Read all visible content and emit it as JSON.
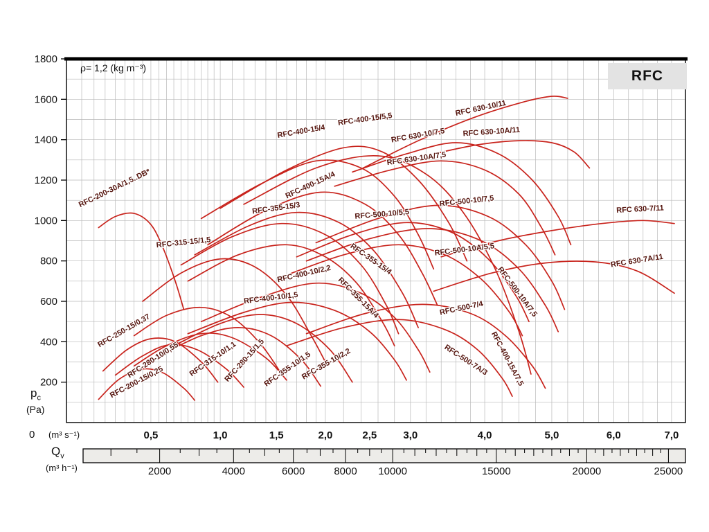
{
  "annotations": {
    "density": "ρ= 1,2 (kg m⁻³)",
    "brand": "RFC"
  },
  "axis_labels": {
    "pressure_main": "p",
    "pressure_sub": "c",
    "pressure_unit": "(Pa)",
    "pressure_zero": "0",
    "flow_s_unit": "(m³ s⁻¹)",
    "flow_h_main": "Q",
    "flow_h_sub": "v",
    "flow_h_unit": "(m³ h⁻¹)"
  },
  "colors": {
    "curve": "#c8231c",
    "curve_label": "#55150e",
    "grid": "#b9b9b9",
    "frame": "#000000",
    "ruler_fill": "#edece9",
    "brand_bg": "#e3e3e3"
  },
  "y_axis": {
    "unit": "Pa",
    "min": 0,
    "max": 1800,
    "ticks": [
      200,
      400,
      600,
      800,
      1000,
      1200,
      1400,
      1600,
      1800
    ]
  },
  "x_axis_s": {
    "unit": "m³/s",
    "ticks": [
      {
        "v": 0.5,
        "label": "0,5"
      },
      {
        "v": 1.0,
        "label": "1,0"
      },
      {
        "v": 1.5,
        "label": "1,5"
      },
      {
        "v": 2.0,
        "label": "2,0"
      },
      {
        "v": 2.5,
        "label": "2,5"
      },
      {
        "v": 3.0,
        "label": "3,0"
      },
      {
        "v": 4.0,
        "label": "4,0"
      },
      {
        "v": 5.0,
        "label": "5,0"
      },
      {
        "v": 6.0,
        "label": "6,0"
      },
      {
        "v": 7.0,
        "label": "7,0"
      }
    ]
  },
  "x_axis_h": {
    "unit": "m³/h",
    "ticks": [
      2000,
      4000,
      6000,
      8000,
      10000,
      15000,
      20000,
      25000
    ]
  },
  "chart_data": {
    "type": "line",
    "title": "RFC",
    "subtitle": "Fan performance curves, ρ= 1,2 kg/m³",
    "xlabel": "Qv (m³ s⁻¹ / m³ h⁻¹)",
    "ylabel": "pc (Pa)",
    "xlim": [
      0.1,
      7.25
    ],
    "ylim": [
      0,
      1800
    ],
    "grid": true,
    "series": [
      {
        "name": "RFC-200-15/0,25",
        "points": [
          [
            0.22,
            115
          ],
          [
            0.32,
            215
          ],
          [
            0.45,
            265
          ],
          [
            0.58,
            245
          ],
          [
            0.72,
            170
          ],
          [
            0.8,
            110
          ]
        ],
        "label": {
          "v": 0.42,
          "p": 190,
          "angle": -28
        }
      },
      {
        "name": "RFC-250-15/0,37",
        "points": [
          [
            0.24,
            255
          ],
          [
            0.36,
            360
          ],
          [
            0.5,
            415
          ],
          [
            0.66,
            400
          ],
          [
            0.85,
            300
          ],
          [
            0.98,
            200
          ]
        ],
        "label": {
          "v": 0.35,
          "p": 445,
          "angle": -30
        }
      },
      {
        "name": "RFC-280-10/0,55",
        "points": [
          [
            0.3,
            235
          ],
          [
            0.45,
            330
          ],
          [
            0.62,
            385
          ],
          [
            0.82,
            360
          ],
          [
            1.05,
            265
          ],
          [
            1.2,
            175
          ]
        ],
        "label": {
          "v": 0.52,
          "p": 300,
          "angle": -33
        }
      },
      {
        "name": "RFC-315-10/1,1",
        "points": [
          [
            0.4,
            280
          ],
          [
            0.6,
            380
          ],
          [
            0.85,
            440
          ],
          [
            1.1,
            420
          ],
          [
            1.4,
            320
          ],
          [
            1.6,
            210
          ]
        ],
        "label": {
          "v": 0.95,
          "p": 305,
          "angle": -35
        }
      },
      {
        "name": "RFC-280-15/1,5",
        "points": [
          [
            0.4,
            430
          ],
          [
            0.6,
            530
          ],
          [
            0.85,
            570
          ],
          [
            1.1,
            520
          ],
          [
            1.35,
            390
          ],
          [
            1.55,
            240
          ]
        ],
        "label": {
          "v": 1.22,
          "p": 300,
          "angle": -48
        }
      },
      {
        "name": "RFC-355-10/1,5",
        "points": [
          [
            0.55,
            330
          ],
          [
            0.85,
            430
          ],
          [
            1.15,
            470
          ],
          [
            1.45,
            430
          ],
          [
            1.75,
            310
          ],
          [
            1.95,
            180
          ]
        ],
        "label": {
          "v": 1.62,
          "p": 255,
          "angle": -35
        }
      },
      {
        "name": "RFC-355-10/2,2",
        "points": [
          [
            0.65,
            380
          ],
          [
            1.0,
            490
          ],
          [
            1.35,
            535
          ],
          [
            1.7,
            490
          ],
          [
            2.05,
            360
          ],
          [
            2.3,
            200
          ]
        ],
        "label": {
          "v": 2.02,
          "p": 280,
          "angle": -30
        }
      },
      {
        "name": "RFC-200-30A/1,5..DB*",
        "points": [
          [
            0.22,
            965
          ],
          [
            0.3,
            1020
          ],
          [
            0.4,
            1035
          ],
          [
            0.5,
            980
          ],
          [
            0.58,
            860
          ],
          [
            0.66,
            700
          ],
          [
            0.72,
            560
          ]
        ],
        "label": {
          "v": 0.3,
          "p": 1150,
          "angle": -26
        }
      },
      {
        "name": "RFC-315-15/1,5",
        "points": [
          [
            0.45,
            600
          ],
          [
            0.7,
            740
          ],
          [
            1.0,
            810
          ],
          [
            1.3,
            770
          ],
          [
            1.6,
            630
          ],
          [
            1.85,
            430
          ],
          [
            2.0,
            300
          ]
        ],
        "label": {
          "v": 0.72,
          "p": 880,
          "angle": -6
        }
      },
      {
        "name": "RFC-355-15/3",
        "points": [
          [
            0.7,
            780
          ],
          [
            1.1,
            920
          ],
          [
            1.55,
            985
          ],
          [
            2.0,
            930
          ],
          [
            2.4,
            780
          ],
          [
            2.7,
            580
          ],
          [
            2.85,
            440
          ]
        ],
        "label": {
          "v": 1.5,
          "p": 1050,
          "angle": -8
        }
      },
      {
        "name": "RFC-355-15/4",
        "points": [
          [
            0.8,
            830
          ],
          [
            1.25,
            975
          ],
          [
            1.7,
            1040
          ],
          [
            2.15,
            990
          ],
          [
            2.55,
            850
          ],
          [
            2.9,
            640
          ],
          [
            3.1,
            470
          ]
        ],
        "label": {
          "v": 2.5,
          "p": 800,
          "angle": 35
        }
      },
      {
        "name": "RFC-355-15A/4",
        "points": [
          [
            0.75,
            700
          ],
          [
            1.15,
            830
          ],
          [
            1.6,
            880
          ],
          [
            2.0,
            820
          ],
          [
            2.35,
            690
          ],
          [
            2.65,
            500
          ],
          [
            2.8,
            380
          ]
        ],
        "label": {
          "v": 2.35,
          "p": 610,
          "angle": 45
        }
      },
      {
        "name": "RFC-400-15/4",
        "points": [
          [
            0.85,
            1010
          ],
          [
            1.35,
            1180
          ],
          [
            1.9,
            1295
          ],
          [
            2.4,
            1260
          ],
          [
            2.8,
            1120
          ],
          [
            3.1,
            930
          ],
          [
            3.3,
            760
          ]
        ],
        "label": {
          "v": 1.75,
          "p": 1430,
          "angle": -10
        }
      },
      {
        "name": "RFC-400-15/5,5",
        "points": [
          [
            1.0,
            1060
          ],
          [
            1.6,
            1250
          ],
          [
            2.2,
            1360
          ],
          [
            2.65,
            1340
          ],
          [
            3.1,
            1200
          ],
          [
            3.5,
            990
          ],
          [
            3.75,
            800
          ]
        ],
        "label": {
          "v": 2.45,
          "p": 1490,
          "angle": -8
        }
      },
      {
        "name": "RFC-400-15A/4",
        "points": [
          [
            0.9,
            880
          ],
          [
            1.4,
            1050
          ],
          [
            1.95,
            1140
          ],
          [
            2.45,
            1080
          ],
          [
            2.85,
            930
          ],
          [
            3.15,
            740
          ],
          [
            3.35,
            580
          ]
        ],
        "label": {
          "v": 1.85,
          "p": 1165,
          "angle": -25
        }
      },
      {
        "name": "RFC-400-10/2,2",
        "points": [
          [
            0.85,
            500
          ],
          [
            1.35,
            620
          ],
          [
            1.9,
            690
          ],
          [
            2.4,
            640
          ],
          [
            2.8,
            520
          ],
          [
            3.1,
            360
          ],
          [
            3.25,
            250
          ]
        ],
        "label": {
          "v": 1.78,
          "p": 725,
          "angle": -13
        }
      },
      {
        "name": "RFC-400-10/1,5",
        "points": [
          [
            0.75,
            440
          ],
          [
            1.2,
            545
          ],
          [
            1.65,
            595
          ],
          [
            2.1,
            555
          ],
          [
            2.5,
            450
          ],
          [
            2.8,
            310
          ],
          [
            2.95,
            210
          ]
        ],
        "label": {
          "v": 1.45,
          "p": 605,
          "angle": -7
        }
      },
      {
        "name": "RFC-400-15A/7,5",
        "points": [
          [
            1.2,
            1080
          ],
          [
            1.9,
            1260
          ],
          [
            2.6,
            1320
          ],
          [
            3.2,
            1230
          ],
          [
            3.7,
            1040
          ],
          [
            4.15,
            760
          ],
          [
            4.5,
            450
          ],
          [
            4.68,
            240
          ]
        ],
        "label": {
          "v": 4.3,
          "p": 310,
          "angle": 62
        }
      },
      {
        "name": "RFC-500-10/5,5",
        "points": [
          [
            1.7,
            820
          ],
          [
            2.3,
            930
          ],
          [
            2.95,
            990
          ],
          [
            3.55,
            940
          ],
          [
            4.05,
            810
          ],
          [
            4.45,
            630
          ],
          [
            4.65,
            500
          ]
        ],
        "label": {
          "v": 2.65,
          "p": 1020,
          "angle": -5
        }
      },
      {
        "name": "RFC-500-10/7,5",
        "points": [
          [
            1.9,
            890
          ],
          [
            2.6,
            1010
          ],
          [
            3.35,
            1075
          ],
          [
            4.05,
            1020
          ],
          [
            4.6,
            880
          ],
          [
            5.0,
            700
          ],
          [
            5.2,
            560
          ]
        ],
        "label": {
          "v": 3.75,
          "p": 1085,
          "angle": -6
        }
      },
      {
        "name": "RFC-500-10A/5,5",
        "points": [
          [
            1.6,
            730
          ],
          [
            2.2,
            830
          ],
          [
            2.85,
            880
          ],
          [
            3.45,
            830
          ],
          [
            3.95,
            710
          ],
          [
            4.35,
            550
          ],
          [
            4.55,
            430
          ]
        ],
        "label": {
          "v": 3.72,
          "p": 845,
          "angle": -7
        }
      },
      {
        "name": "RFC-500-10A/7,5",
        "points": [
          [
            1.8,
            800
          ],
          [
            2.5,
            910
          ],
          [
            3.25,
            960
          ],
          [
            3.95,
            900
          ],
          [
            4.5,
            760
          ],
          [
            4.9,
            580
          ],
          [
            5.1,
            450
          ]
        ],
        "label": {
          "v": 4.45,
          "p": 640,
          "angle": 53
        }
      },
      {
        "name": "RFC-500-7/4",
        "points": [
          [
            1.8,
            440
          ],
          [
            2.45,
            540
          ],
          [
            3.15,
            585
          ],
          [
            3.8,
            540
          ],
          [
            4.3,
            430
          ],
          [
            4.7,
            280
          ],
          [
            4.9,
            170
          ]
        ],
        "label": {
          "v": 3.68,
          "p": 555,
          "angle": -12
        }
      },
      {
        "name": "RFC-500-7A/3",
        "points": [
          [
            1.6,
            380
          ],
          [
            2.2,
            470
          ],
          [
            2.85,
            510
          ],
          [
            3.45,
            460
          ],
          [
            3.9,
            360
          ],
          [
            4.25,
            220
          ],
          [
            4.4,
            130
          ]
        ],
        "label": {
          "v": 3.72,
          "p": 300,
          "angle": 33
        }
      },
      {
        "name": "RFC 630-10/7,5",
        "points": [
          [
            2.3,
            1240
          ],
          [
            2.95,
            1330
          ],
          [
            3.6,
            1385
          ],
          [
            4.2,
            1330
          ],
          [
            4.7,
            1200
          ],
          [
            5.1,
            1020
          ],
          [
            5.3,
            880
          ]
        ],
        "label": {
          "v": 3.1,
          "p": 1410,
          "angle": -10
        }
      },
      {
        "name": "RFC 630-10/11",
        "points": [
          [
            2.4,
            1255
          ],
          [
            3.1,
            1395
          ],
          [
            3.85,
            1510
          ],
          [
            4.55,
            1585
          ],
          [
            5.0,
            1615
          ],
          [
            5.25,
            1605
          ]
        ],
        "label": {
          "v": 3.95,
          "p": 1545,
          "angle": -12
        }
      },
      {
        "name": "RFC 630-10A/7,5",
        "points": [
          [
            2.1,
            1170
          ],
          [
            2.75,
            1250
          ],
          [
            3.4,
            1295
          ],
          [
            4.0,
            1250
          ],
          [
            4.5,
            1130
          ],
          [
            4.85,
            960
          ],
          [
            5.05,
            830
          ]
        ],
        "label": {
          "v": 3.08,
          "p": 1295,
          "angle": -8
        }
      },
      {
        "name": "RFC 630-10A/11",
        "points": [
          [
            3.3,
            1330
          ],
          [
            3.9,
            1375
          ],
          [
            4.5,
            1395
          ],
          [
            5.0,
            1385
          ],
          [
            5.35,
            1340
          ],
          [
            5.6,
            1260
          ]
        ],
        "label": {
          "v": 4.1,
          "p": 1428,
          "angle": -4
        }
      },
      {
        "name": "RFC 630-7/11",
        "points": [
          [
            3.4,
            820
          ],
          [
            4.2,
            900
          ],
          [
            5.0,
            950
          ],
          [
            5.8,
            985
          ],
          [
            6.5,
            1000
          ],
          [
            7.05,
            985
          ]
        ],
        "label": {
          "v": 6.45,
          "p": 1045,
          "angle": -3
        }
      },
      {
        "name": "RFC 630-7A/11",
        "points": [
          [
            3.3,
            650
          ],
          [
            4.1,
            740
          ],
          [
            4.9,
            790
          ],
          [
            5.7,
            795
          ],
          [
            6.4,
            750
          ],
          [
            7.05,
            640
          ]
        ],
        "label": {
          "v": 6.4,
          "p": 790,
          "angle": -9
        }
      }
    ]
  }
}
